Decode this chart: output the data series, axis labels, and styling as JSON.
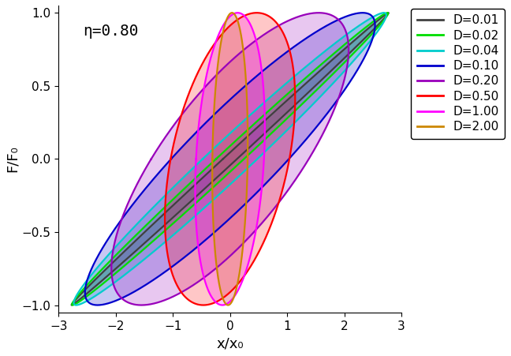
{
  "eta": 0.8,
  "D_values": [
    0.01,
    0.02,
    0.04,
    0.1,
    0.2,
    0.5,
    1.0,
    2.0
  ],
  "colors": [
    "#404040",
    "#00dd00",
    "#00cccc",
    "#0000cc",
    "#9900bb",
    "#ff0000",
    "#ff00ff",
    "#cc8800"
  ],
  "title_text": "η=0.80",
  "xlabel": "x/x₀",
  "ylabel": "F/F₀",
  "xlim": [
    -3,
    3
  ],
  "ylim": [
    -1.05,
    1.05
  ],
  "legend_labels": [
    "D=0.01",
    "D=0.02",
    "D=0.04",
    "D=0.10",
    "D=0.20",
    "D=0.50",
    "D=1.00",
    "D=2.00"
  ],
  "alpha_fill": 0.22,
  "linewidth": 1.6,
  "draw_order": [
    3,
    4,
    5,
    6,
    7,
    2,
    1,
    0
  ]
}
